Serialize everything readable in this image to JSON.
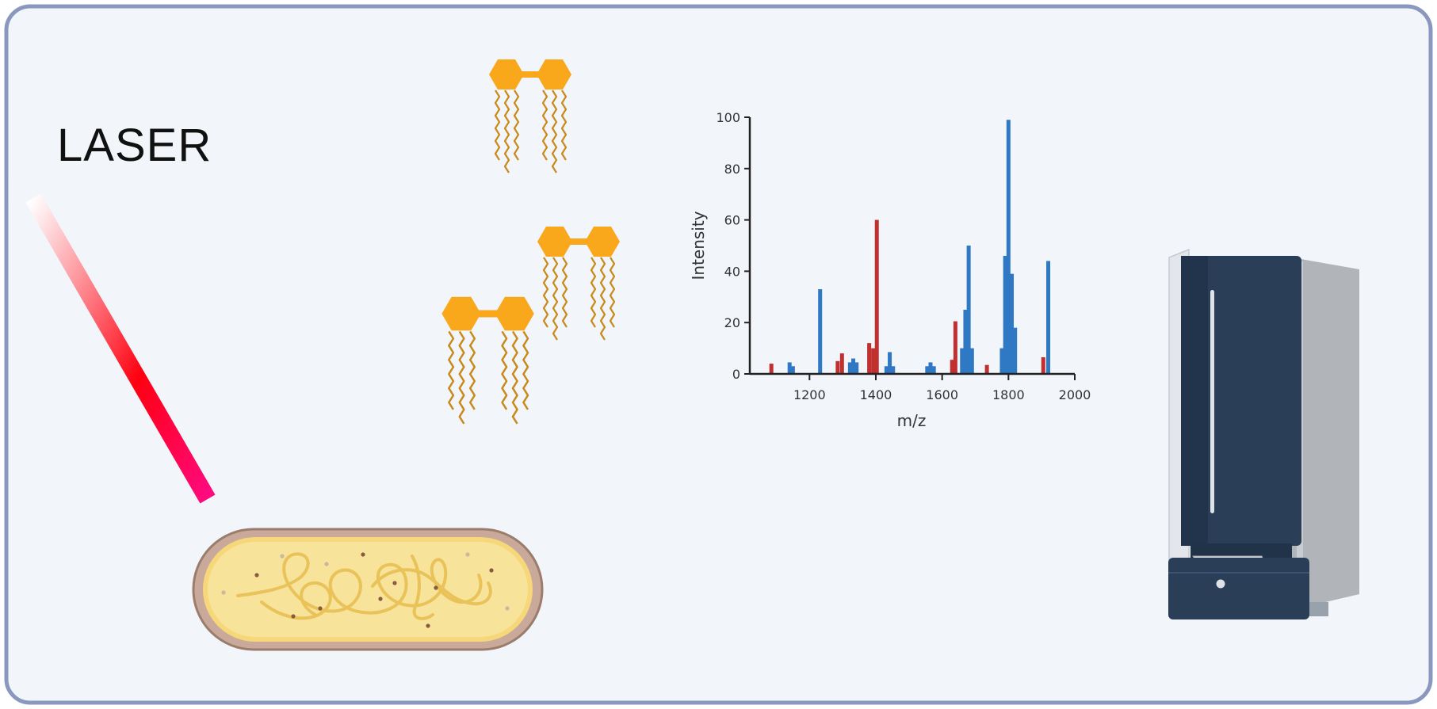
{
  "diagram": {
    "laser_label": "LASER",
    "colors": {
      "frame_border": "#8a98bf",
      "background": "#f2f5fa",
      "lipid_head": "#f9a81c",
      "lipid_tail": "#c98a1c",
      "cell_fill": "#f8e39a",
      "cell_outline": "#9c7c6a",
      "series_red": "#c0302f",
      "series_blue": "#2f78c4",
      "instrument_dark": "#2a3e58",
      "instrument_light": "#d9dde3"
    },
    "icons": [
      "laser-beam-icon",
      "lipid-molecule-icon",
      "bacterium-cell-icon",
      "mass-spectrometer-icon"
    ]
  },
  "chart_data": {
    "type": "bar",
    "xlabel": "m/z",
    "ylabel": "Intensity",
    "xlim": [
      1020,
      2000
    ],
    "ylim": [
      0,
      100
    ],
    "xticks": [
      "1200",
      "1400",
      "1600",
      "1800",
      "2000"
    ],
    "yticks": [
      "0",
      "20",
      "40",
      "60",
      "80",
      "100"
    ],
    "series": [
      {
        "color": "#c0302f",
        "points": [
          {
            "x": 1085,
            "y": 4
          },
          {
            "x": 1285,
            "y": 5
          },
          {
            "x": 1298,
            "y": 8
          },
          {
            "x": 1380,
            "y": 12
          },
          {
            "x": 1392,
            "y": 10
          },
          {
            "x": 1403,
            "y": 60
          },
          {
            "x": 1630,
            "y": 5.5
          },
          {
            "x": 1640,
            "y": 20.5
          },
          {
            "x": 1735,
            "y": 3.5
          },
          {
            "x": 1905,
            "y": 6.5
          }
        ]
      },
      {
        "color": "#2f78c4",
        "points": [
          {
            "x": 1140,
            "y": 4.5
          },
          {
            "x": 1150,
            "y": 3
          },
          {
            "x": 1232,
            "y": 33
          },
          {
            "x": 1322,
            "y": 4.5
          },
          {
            "x": 1332,
            "y": 6
          },
          {
            "x": 1342,
            "y": 4.5
          },
          {
            "x": 1432,
            "y": 3
          },
          {
            "x": 1442,
            "y": 8.5
          },
          {
            "x": 1452,
            "y": 3
          },
          {
            "x": 1555,
            "y": 3
          },
          {
            "x": 1565,
            "y": 4.5
          },
          {
            "x": 1575,
            "y": 3
          },
          {
            "x": 1660,
            "y": 10
          },
          {
            "x": 1670,
            "y": 25
          },
          {
            "x": 1680,
            "y": 50
          },
          {
            "x": 1690,
            "y": 10
          },
          {
            "x": 1780,
            "y": 10
          },
          {
            "x": 1790,
            "y": 46
          },
          {
            "x": 1800,
            "y": 99
          },
          {
            "x": 1810,
            "y": 39
          },
          {
            "x": 1820,
            "y": 18
          },
          {
            "x": 1920,
            "y": 44
          }
        ]
      }
    ]
  }
}
